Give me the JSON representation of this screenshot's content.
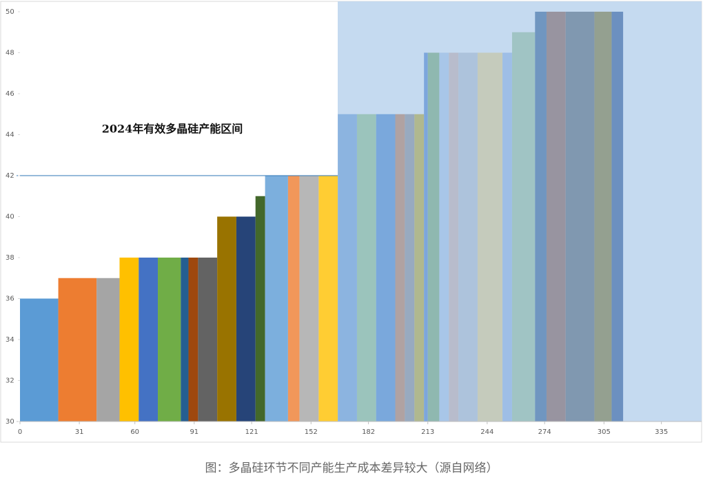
{
  "chart_data": {
    "type": "histogram",
    "annotation": "2024年有效多晶硅产能区间",
    "caption": "图：多晶硅环节不同产能生产成本差异较大（源自网络）",
    "bins": [
      0,
      20,
      40,
      52,
      62,
      72,
      84,
      88,
      93,
      103,
      113,
      123,
      128,
      140,
      146,
      156,
      166,
      176,
      186,
      196,
      201,
      206,
      211,
      213,
      219,
      224,
      229,
      239,
      252,
      257,
      269,
      275,
      285,
      300,
      309,
      315
    ],
    "values": [
      36,
      37,
      37,
      38,
      38,
      38,
      38,
      38,
      38,
      40,
      40,
      41,
      42,
      42,
      42,
      42,
      45,
      45,
      45,
      45,
      45,
      45,
      48,
      48,
      48,
      48,
      48,
      48,
      48,
      49,
      50,
      50,
      50,
      50,
      50
    ],
    "colors": [
      "#5b9bd5",
      "#ed7d31",
      "#a5a5a5",
      "#ffc000",
      "#4472c4",
      "#70ad47",
      "#255e91",
      "#9e480e",
      "#636363",
      "#997300",
      "#264478",
      "#43682b",
      "#7cafdd",
      "#f1975a",
      "#b7b7b7",
      "#ffcd33",
      "#8cb4e0",
      "#9bc4bc",
      "#7aa8dc",
      "#b0a2a2",
      "#98aac0",
      "#b0b88f",
      "#7da6dc",
      "#8fb8b0",
      "#a8c6e8",
      "#b8bccc",
      "#adc3dc",
      "#c5cbbc",
      "#9ebee6",
      "#a0c4c4",
      "#7096c0",
      "#9894a0",
      "#8098b0",
      "#94a090",
      "#6c90c0"
    ],
    "reference_line": 42,
    "xlim": [
      0,
      356
    ],
    "ylim": [
      30,
      50
    ],
    "xticks": [
      0,
      31,
      60,
      91,
      121,
      152,
      182,
      213,
      244,
      274,
      305,
      335
    ],
    "yticks": [
      30,
      32,
      34,
      36,
      38,
      40,
      42,
      44,
      46,
      48,
      50
    ]
  }
}
